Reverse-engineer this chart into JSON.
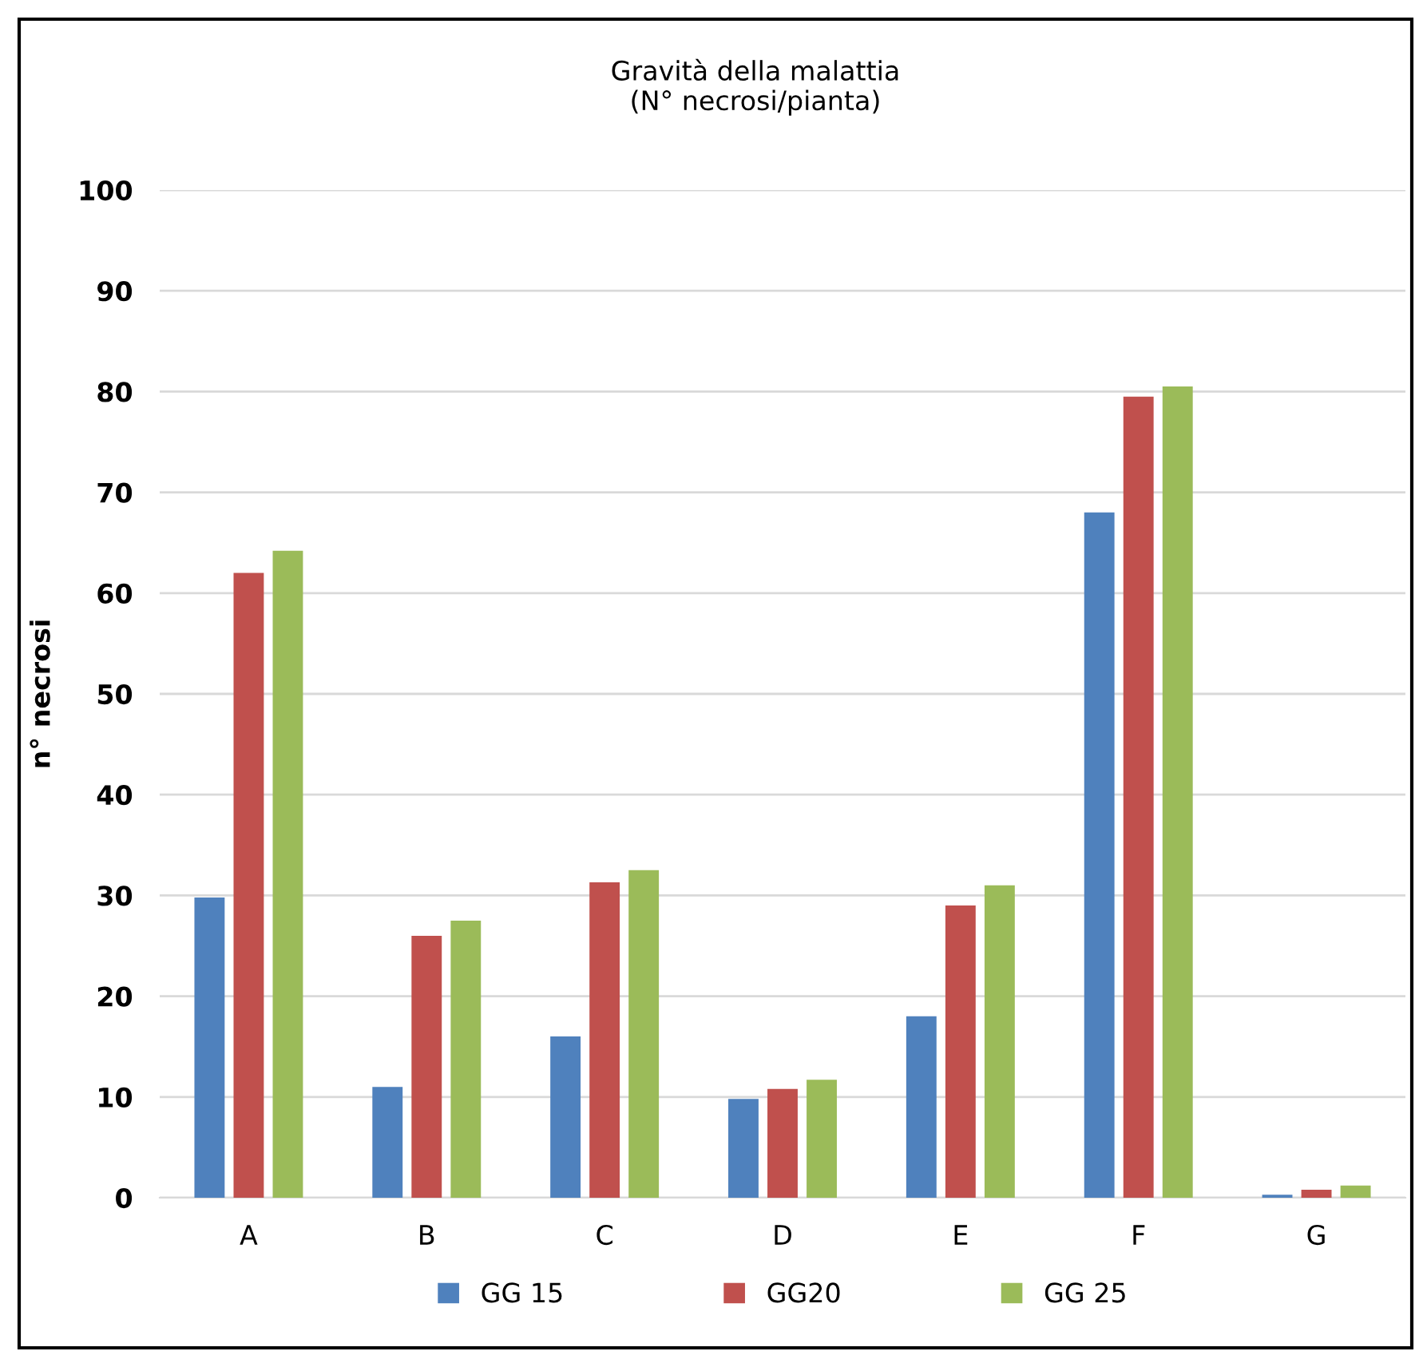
{
  "chart_data": {
    "type": "bar",
    "title": "Gravità della malattia\n(N° necrosi/pianta)",
    "ylabel": "n° necrosi",
    "categories": [
      "A",
      "B",
      "C",
      "D",
      "E",
      "F",
      "G"
    ],
    "series": [
      {
        "name": "GG 15",
        "color": "#4f81bd",
        "values": [
          29.8,
          11,
          16,
          9.8,
          18,
          68,
          0.3
        ]
      },
      {
        "name": "GG20",
        "color": "#c0504d",
        "values": [
          62,
          26,
          31.3,
          10.8,
          29,
          79.5,
          0.8
        ]
      },
      {
        "name": "GG 25",
        "color": "#9bbb59",
        "values": [
          64.2,
          27.5,
          32.5,
          11.7,
          31,
          80.5,
          1.2
        ]
      }
    ],
    "ylim": [
      0,
      100
    ],
    "yticks": [
      0,
      10,
      20,
      30,
      40,
      50,
      60,
      70,
      80,
      90,
      100
    ],
    "grid": "y",
    "legend": "bottom"
  }
}
